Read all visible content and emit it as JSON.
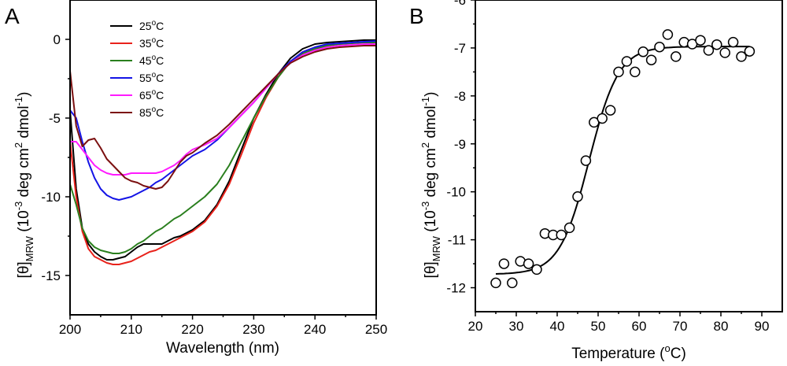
{
  "chart_data": [
    {
      "panel": "A",
      "type": "line",
      "title": "",
      "xlabel": "Wavelength (nm)",
      "ylabel": "[θ]MRW (10-3 deg cm2 dmol-1)",
      "ylabel_parts": {
        "theta": "[θ]",
        "sub": "MRW",
        "open": " (10",
        "exp1": "-3",
        "mid": " deg cm",
        "exp2": "2",
        "mid2": " dmol",
        "exp3": "-1",
        "close": ")"
      },
      "xlim": [
        200,
        250
      ],
      "ylim": [
        -17.5,
        2.5
      ],
      "xticks": [
        200,
        210,
        220,
        230,
        240,
        250
      ],
      "yticks": [
        0,
        -5,
        -10,
        -15
      ],
      "legend_position": "top-left",
      "series": [
        {
          "name": "25°C",
          "label": "25",
          "unit": "°C",
          "color": "#000000",
          "x": [
            200,
            201,
            202,
            203,
            204,
            205,
            206,
            207,
            208,
            209,
            210,
            211,
            212,
            213,
            214,
            215,
            216,
            217,
            218,
            219,
            220,
            222,
            224,
            226,
            228,
            230,
            232,
            234,
            236,
            238,
            240,
            242,
            244,
            246,
            248,
            250
          ],
          "y": [
            -4.5,
            -9.5,
            -12.0,
            -13.0,
            -13.5,
            -13.8,
            -14.0,
            -14.0,
            -13.9,
            -13.8,
            -13.5,
            -13.2,
            -13.0,
            -13.0,
            -13.0,
            -13.0,
            -12.8,
            -12.6,
            -12.5,
            -12.3,
            -12.1,
            -11.5,
            -10.5,
            -9.0,
            -7.0,
            -5.0,
            -3.5,
            -2.2,
            -1.2,
            -0.6,
            -0.3,
            -0.2,
            -0.15,
            -0.1,
            -0.05,
            -0.05
          ]
        },
        {
          "name": "35°C",
          "label": "35",
          "unit": "°C",
          "color": "#e8221b",
          "x": [
            200,
            201,
            202,
            203,
            204,
            205,
            206,
            207,
            208,
            209,
            210,
            211,
            212,
            213,
            214,
            215,
            216,
            217,
            218,
            219,
            220,
            222,
            224,
            226,
            228,
            230,
            232,
            234,
            236,
            238,
            240,
            242,
            244,
            246,
            248,
            250
          ],
          "y": [
            -6.5,
            -10.0,
            -12.2,
            -13.3,
            -13.8,
            -14.0,
            -14.2,
            -14.3,
            -14.3,
            -14.2,
            -14.1,
            -13.9,
            -13.7,
            -13.5,
            -13.4,
            -13.2,
            -13.0,
            -12.8,
            -12.6,
            -12.4,
            -12.2,
            -11.6,
            -10.6,
            -9.2,
            -7.3,
            -5.3,
            -3.7,
            -2.4,
            -1.4,
            -0.8,
            -0.5,
            -0.4,
            -0.3,
            -0.25,
            -0.2,
            -0.2
          ]
        },
        {
          "name": "45°C",
          "label": "45",
          "unit": "°C",
          "color": "#2a7f1e",
          "x": [
            200,
            201,
            202,
            203,
            204,
            205,
            206,
            207,
            208,
            209,
            210,
            211,
            212,
            213,
            214,
            215,
            216,
            217,
            218,
            219,
            220,
            222,
            224,
            226,
            228,
            230,
            232,
            234,
            236,
            238,
            240,
            242,
            244,
            246,
            248,
            250
          ],
          "y": [
            -9.2,
            -10.5,
            -12.0,
            -12.8,
            -13.2,
            -13.4,
            -13.5,
            -13.6,
            -13.6,
            -13.5,
            -13.3,
            -13.0,
            -12.8,
            -12.5,
            -12.2,
            -12.0,
            -11.7,
            -11.4,
            -11.2,
            -10.9,
            -10.6,
            -10.0,
            -9.2,
            -8.0,
            -6.5,
            -5.0,
            -3.6,
            -2.4,
            -1.4,
            -0.9,
            -0.6,
            -0.4,
            -0.3,
            -0.25,
            -0.2,
            -0.2
          ]
        },
        {
          "name": "55°C",
          "label": "55",
          "unit": "°C",
          "color": "#1414e6",
          "x": [
            200,
            201,
            202,
            203,
            204,
            205,
            206,
            207,
            208,
            209,
            210,
            211,
            212,
            213,
            214,
            215,
            216,
            217,
            218,
            219,
            220,
            222,
            224,
            226,
            228,
            230,
            232,
            234,
            236,
            238,
            240,
            242,
            244,
            246,
            248,
            250
          ],
          "y": [
            -4.5,
            -5.0,
            -6.5,
            -7.8,
            -8.8,
            -9.5,
            -9.9,
            -10.1,
            -10.2,
            -10.1,
            -10.0,
            -9.8,
            -9.6,
            -9.4,
            -9.1,
            -8.9,
            -8.6,
            -8.3,
            -8.0,
            -7.7,
            -7.4,
            -7.0,
            -6.4,
            -5.6,
            -4.8,
            -4.0,
            -3.1,
            -2.2,
            -1.4,
            -0.8,
            -0.5,
            -0.3,
            -0.25,
            -0.2,
            -0.15,
            -0.1
          ]
        },
        {
          "name": "65°C",
          "label": "65",
          "unit": "°C",
          "color": "#ff1aff",
          "x": [
            200,
            201,
            202,
            203,
            204,
            205,
            206,
            207,
            208,
            209,
            210,
            211,
            212,
            213,
            214,
            215,
            216,
            217,
            218,
            219,
            220,
            222,
            224,
            226,
            228,
            230,
            232,
            234,
            236,
            238,
            240,
            242,
            244,
            246,
            248,
            250
          ],
          "y": [
            -6.5,
            -6.5,
            -7.0,
            -7.5,
            -8.0,
            -8.3,
            -8.5,
            -8.6,
            -8.6,
            -8.6,
            -8.5,
            -8.5,
            -8.5,
            -8.5,
            -8.5,
            -8.4,
            -8.2,
            -8.0,
            -7.7,
            -7.3,
            -7.0,
            -6.7,
            -6.3,
            -5.6,
            -4.8,
            -4.0,
            -3.1,
            -2.2,
            -1.5,
            -1.0,
            -0.7,
            -0.5,
            -0.4,
            -0.35,
            -0.3,
            -0.3
          ]
        },
        {
          "name": "85°C",
          "label": "85",
          "unit": "°C",
          "color": "#7b1010",
          "x": [
            200,
            201,
            202,
            203,
            204,
            205,
            206,
            207,
            208,
            209,
            210,
            211,
            212,
            213,
            214,
            215,
            216,
            217,
            218,
            219,
            220,
            222,
            224,
            226,
            228,
            230,
            232,
            234,
            236,
            238,
            240,
            242,
            244,
            246,
            248,
            250
          ],
          "y": [
            -2.0,
            -5.5,
            -6.8,
            -6.4,
            -6.3,
            -6.9,
            -7.6,
            -8.0,
            -8.4,
            -8.8,
            -9.0,
            -9.1,
            -9.3,
            -9.4,
            -9.5,
            -9.4,
            -9.0,
            -8.4,
            -7.8,
            -7.4,
            -7.2,
            -6.6,
            -6.1,
            -5.4,
            -4.6,
            -3.8,
            -3.0,
            -2.2,
            -1.5,
            -1.1,
            -0.8,
            -0.6,
            -0.5,
            -0.45,
            -0.4,
            -0.4
          ]
        }
      ]
    },
    {
      "panel": "B",
      "type": "scatter",
      "title": "",
      "xlabel": "Temperature (°C)",
      "xlabel_parts": {
        "pre": "Temperature (",
        "sup": "o",
        "post": "C)"
      },
      "ylabel": "[θ]MRW (10-3 deg cm2 dmol-1)",
      "ylabel_parts": {
        "theta": "[θ]",
        "sub": "MRW",
        "open": " (10",
        "exp1": "-3",
        "mid": " deg cm",
        "exp2": "2",
        "mid2": " dmol",
        "exp3": "-1",
        "close": ")"
      },
      "xlim": [
        20,
        95
      ],
      "ylim": [
        -12.5,
        -6
      ],
      "xticks": [
        20,
        30,
        40,
        50,
        60,
        70,
        80,
        90
      ],
      "yticks": [
        -6,
        -7,
        -8,
        -9,
        -10,
        -11,
        -12
      ],
      "points": {
        "x": [
          25,
          27,
          29,
          31,
          33,
          35,
          37,
          39,
          41,
          43,
          45,
          47,
          49,
          51,
          53,
          55,
          57,
          59,
          61,
          63,
          65,
          67,
          69,
          71,
          73,
          75,
          77,
          79,
          81,
          83,
          85,
          87
        ],
        "y": [
          -11.9,
          -11.5,
          -11.9,
          -11.45,
          -11.5,
          -11.62,
          -10.87,
          -10.9,
          -10.9,
          -10.75,
          -10.1,
          -9.35,
          -8.55,
          -8.47,
          -8.3,
          -7.5,
          -7.28,
          -7.5,
          -7.08,
          -7.25,
          -6.98,
          -6.72,
          -7.18,
          -6.88,
          -6.92,
          -6.84,
          -7.05,
          -6.93,
          -7.1,
          -6.88,
          -7.18,
          -7.07
        ]
      },
      "fit": {
        "model": "sigmoid",
        "bottom": -11.72,
        "top": -6.97,
        "midpoint_C": 47.8,
        "slope_C": 3.6
      }
    }
  ]
}
